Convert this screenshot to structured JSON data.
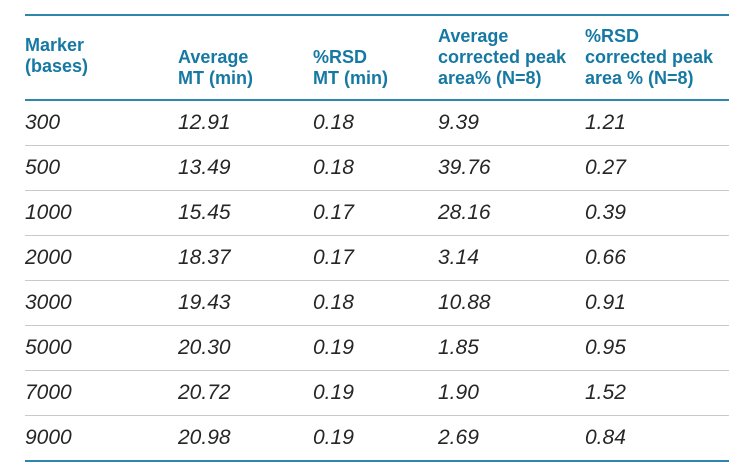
{
  "figure": {
    "description": "DNA sizing marker migration-time and corrected peak-area reproducibility table"
  },
  "table": {
    "headers": [
      "Marker\n(bases)",
      "Average\nMT (min)",
      "%RSD\nMT (min)",
      "Average\ncorrected peak\narea% (N=8)",
      "%RSD\ncorrected peak\narea % (N=8)"
    ],
    "rows": [
      [
        "300",
        "12.91",
        "0.18",
        "9.39",
        "1.21"
      ],
      [
        "500",
        "13.49",
        "0.18",
        "39.76",
        "0.27"
      ],
      [
        "1000",
        "15.45",
        "0.17",
        "28.16",
        "0.39"
      ],
      [
        "2000",
        "18.37",
        "0.17",
        "3.14",
        "0.66"
      ],
      [
        "3000",
        "19.43",
        "0.18",
        "10.88",
        "0.91"
      ],
      [
        "5000",
        "20.30",
        "0.19",
        "1.85",
        "0.95"
      ],
      [
        "7000",
        "20.72",
        "0.19",
        "1.90",
        "1.52"
      ],
      [
        "9000",
        "20.98",
        "0.19",
        "2.69",
        "0.84"
      ]
    ]
  },
  "colors": {
    "header_text": "#1679a3",
    "accent_line": "#2e86ac",
    "row_divider": "#c9c9c9",
    "data_text": "#262626",
    "background": "#ffffff"
  }
}
